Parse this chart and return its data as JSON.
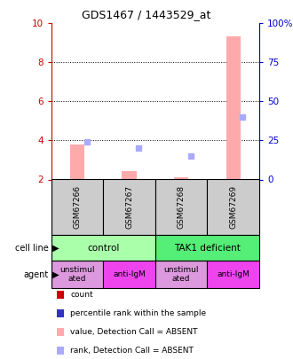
{
  "title": "GDS1467 / 1443529_at",
  "samples": [
    "GSM67266",
    "GSM67267",
    "GSM67268",
    "GSM67269"
  ],
  "ylim_left": [
    2,
    10
  ],
  "ylim_right": [
    0,
    100
  ],
  "yticks_left": [
    2,
    4,
    6,
    8,
    10
  ],
  "yticks_right": [
    0,
    25,
    50,
    75,
    100
  ],
  "ytick_labels_right": [
    "0",
    "25",
    "50",
    "75",
    "100%"
  ],
  "bar_absent_values": [
    3.8,
    2.45,
    2.1,
    9.35
  ],
  "rank_absent_values": [
    3.95,
    3.6,
    3.2,
    5.2
  ],
  "bar_color_absent": "#ffaaaa",
  "rank_color_absent": "#aaaaff",
  "cell_line_labels": [
    "control",
    "TAK1 deficient"
  ],
  "cell_line_spans": [
    [
      0,
      2
    ],
    [
      2,
      4
    ]
  ],
  "cell_line_colors": [
    "#aaffaa",
    "#55ee77"
  ],
  "agent_labels": [
    "unstimul\nated",
    "anti-IgM",
    "unstimul\nated",
    "anti-IgM"
  ],
  "agent_colors": [
    "#dd99dd",
    "#ee44ee",
    "#dd99dd",
    "#ee44ee"
  ],
  "legend_items": [
    {
      "color": "#cc0000",
      "label": "count"
    },
    {
      "color": "#3333bb",
      "label": "percentile rank within the sample"
    },
    {
      "color": "#ffaaaa",
      "label": "value, Detection Call = ABSENT"
    },
    {
      "color": "#aaaaff",
      "label": "rank, Detection Call = ABSENT"
    }
  ],
  "color_left": "#cc0000",
  "color_right": "#0000cc",
  "grid_yticks": [
    4,
    6,
    8
  ],
  "sample_box_color": "#cccccc"
}
